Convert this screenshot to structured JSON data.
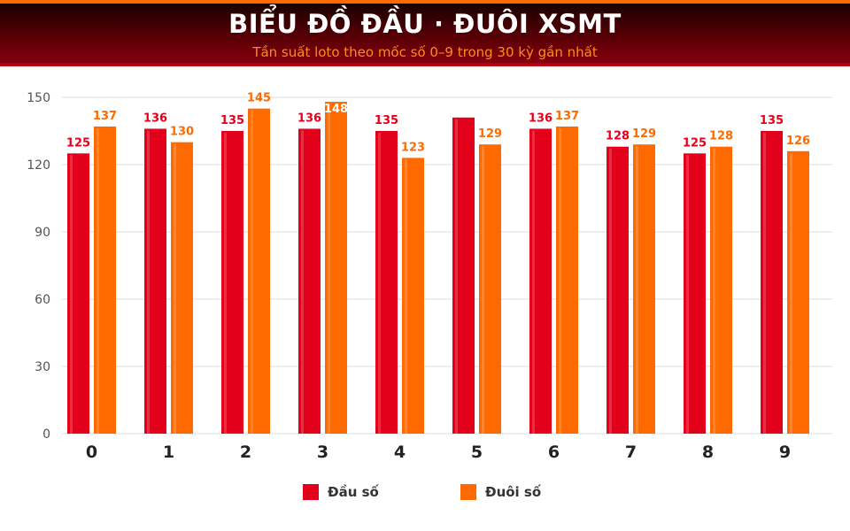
{
  "header": {
    "title": "BIỂU ĐỒ ĐẦU · ĐUÔI XSMT",
    "subtitle": "Tần suất loto theo mốc số 0–9 trong 30 kỳ gần nhất"
  },
  "colors": {
    "dau": "#e3001b",
    "duoi": "#ff6a00",
    "grid": "#dddddd",
    "axis_text": "#555555",
    "category_text": "#222222"
  },
  "chart_data": {
    "type": "bar",
    "title": "BIỂU ĐỒ ĐẦU · ĐUÔI XSMT",
    "subtitle": "Tần suất loto theo mốc số 0–9 trong 30 kỳ gần nhất",
    "categories": [
      "0",
      "1",
      "2",
      "3",
      "4",
      "5",
      "6",
      "7",
      "8",
      "9"
    ],
    "series": [
      {
        "name": "Đầu số",
        "values": [
          125,
          136,
          135,
          136,
          135,
          141,
          136,
          128,
          125,
          135
        ]
      },
      {
        "name": "Đuôi số",
        "values": [
          137,
          130,
          145,
          148,
          123,
          129,
          137,
          129,
          128,
          126
        ]
      }
    ],
    "value_labels": [
      [
        "125",
        "136",
        "135",
        "136",
        "135",
        "",
        "136",
        "128",
        "125",
        "135"
      ],
      [
        "137",
        "130",
        "145",
        "148",
        "123",
        "129",
        "137",
        "129",
        "128",
        "126"
      ]
    ],
    "ylim": [
      0,
      150
    ],
    "yticks": [
      "0",
      "30",
      "60",
      "90",
      "120",
      "150"
    ],
    "xlabel": "",
    "ylabel": "",
    "grid": true,
    "legend_position": "bottom"
  },
  "legend": {
    "items": [
      {
        "label": "Đầu số"
      },
      {
        "label": "Đuôi số"
      }
    ]
  }
}
